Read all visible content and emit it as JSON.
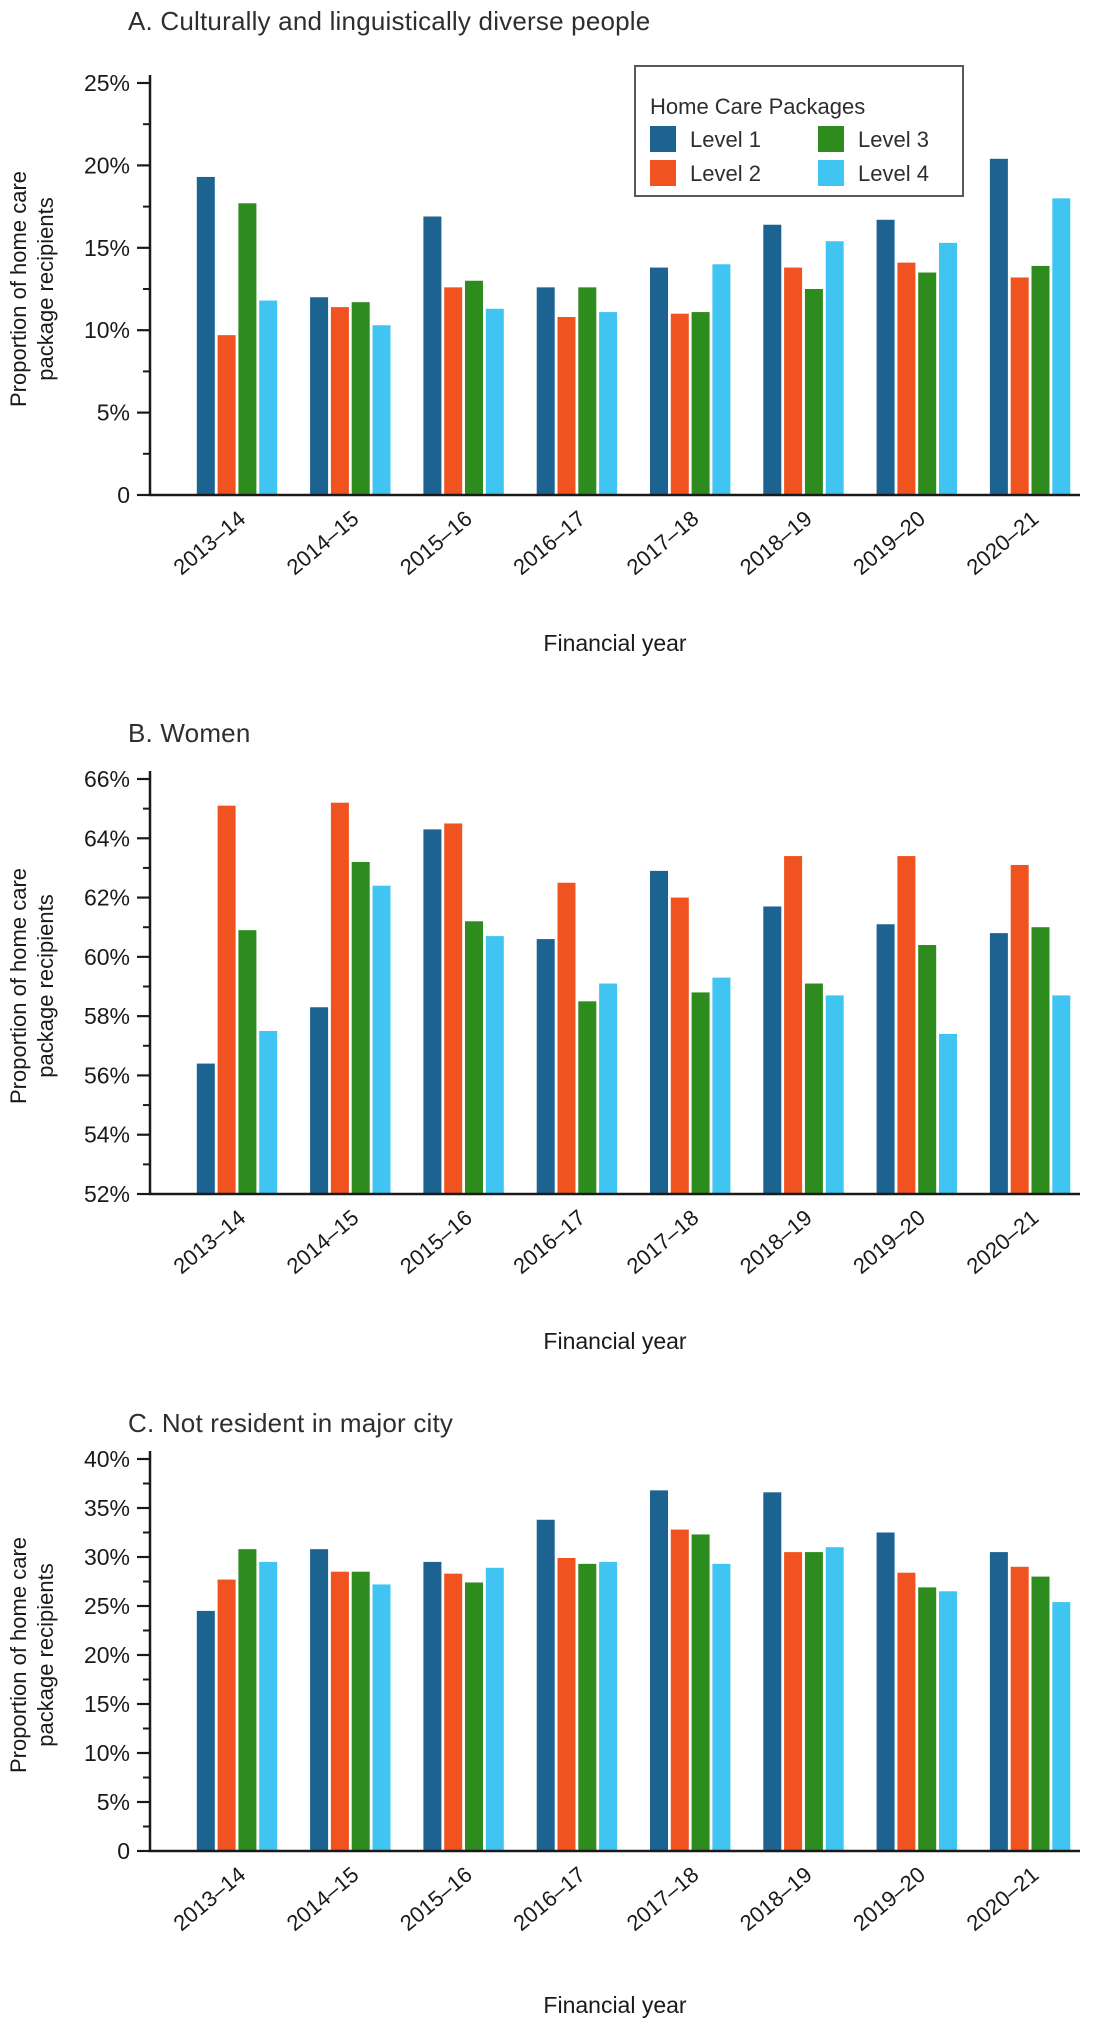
{
  "figure": {
    "legend": {
      "title": "Home Care Packages",
      "entries": [
        {
          "label": "Level 1",
          "color": "#1C6391"
        },
        {
          "label": "Level 2",
          "color": "#F0531F"
        },
        {
          "label": "Level 3",
          "color": "#2E8B1D"
        },
        {
          "label": "Level 4",
          "color": "#40C4F1"
        }
      ]
    },
    "colors": {
      "axis": "#1a1a1a",
      "text": "#1a1a1a",
      "title": "#2e2e2e",
      "legend_border": "#58595b"
    }
  },
  "chart_data": [
    {
      "type": "bar",
      "panel": "A",
      "title": "A. Culturally and linguistically diverse people",
      "xlabel": "Financial year",
      "ylabel": "Proportion of home care package recipients",
      "ylabel_lines": [
        "Proportion of home care",
        "package recipients"
      ],
      "categories": [
        "2013–14",
        "2014–15",
        "2015–16",
        "2016–17",
        "2017–18",
        "2018–19",
        "2019–20",
        "2020–21"
      ],
      "series": [
        {
          "name": "Level 1",
          "color": "#1C6391",
          "values": [
            19.3,
            12.0,
            16.9,
            12.6,
            13.8,
            16.4,
            16.7,
            20.4
          ]
        },
        {
          "name": "Level 2",
          "color": "#F0531F",
          "values": [
            9.7,
            11.4,
            12.6,
            10.8,
            11.0,
            13.8,
            14.1,
            13.2
          ]
        },
        {
          "name": "Level 3",
          "color": "#2E8B1D",
          "values": [
            17.7,
            11.7,
            13.0,
            12.6,
            11.1,
            12.5,
            13.5,
            13.9
          ]
        },
        {
          "name": "Level 4",
          "color": "#40C4F1",
          "values": [
            11.8,
            10.3,
            11.3,
            11.1,
            14.0,
            15.4,
            15.3,
            18.0
          ]
        }
      ],
      "ylim": [
        0,
        25
      ],
      "ytick_values": [
        0,
        5,
        10,
        15,
        20,
        25
      ],
      "ytick_labels": [
        "0",
        "5%",
        "10%",
        "15%",
        "20%",
        "25%"
      ],
      "minor_tick_step": 2.5,
      "grid": false,
      "legend_position": "top-right-inside"
    },
    {
      "type": "bar",
      "panel": "B",
      "title": "B. Women",
      "xlabel": "Financial year",
      "ylabel": "Proportion of home care package recipients",
      "ylabel_lines": [
        "Proportion of home care",
        "package recipients"
      ],
      "categories": [
        "2013–14",
        "2014–15",
        "2015–16",
        "2016–17",
        "2017–18",
        "2018–19",
        "2019–20",
        "2020–21"
      ],
      "series": [
        {
          "name": "Level 1",
          "color": "#1C6391",
          "values": [
            56.4,
            58.3,
            64.3,
            60.6,
            62.9,
            61.7,
            61.1,
            60.8
          ]
        },
        {
          "name": "Level 2",
          "color": "#F0531F",
          "values": [
            65.1,
            65.2,
            64.5,
            62.5,
            62.0,
            63.4,
            63.4,
            63.1
          ]
        },
        {
          "name": "Level 3",
          "color": "#2E8B1D",
          "values": [
            60.9,
            63.2,
            61.2,
            58.5,
            58.8,
            59.1,
            60.4,
            61.0
          ]
        },
        {
          "name": "Level 4",
          "color": "#40C4F1",
          "values": [
            57.5,
            62.4,
            60.7,
            59.1,
            59.3,
            58.7,
            57.4,
            58.7
          ]
        }
      ],
      "ylim": [
        52,
        66
      ],
      "ytick_values": [
        52,
        54,
        56,
        58,
        60,
        62,
        64,
        66
      ],
      "ytick_labels": [
        "52%",
        "54%",
        "56%",
        "58%",
        "60%",
        "62%",
        "64%",
        "66%"
      ],
      "minor_tick_step": 1,
      "grid": false,
      "legend_position": "none"
    },
    {
      "type": "bar",
      "panel": "C",
      "title": "C. Not resident in major city",
      "xlabel": "Financial year",
      "ylabel": "Proportion of home care package recipients",
      "ylabel_lines": [
        "Proportion of home care",
        "package recipients"
      ],
      "categories": [
        "2013–14",
        "2014–15",
        "2015–16",
        "2016–17",
        "2017–18",
        "2018–19",
        "2019–20",
        "2020–21"
      ],
      "series": [
        {
          "name": "Level 1",
          "color": "#1C6391",
          "values": [
            24.5,
            30.8,
            29.5,
            33.8,
            36.8,
            36.6,
            32.5,
            30.5
          ]
        },
        {
          "name": "Level 2",
          "color": "#F0531F",
          "values": [
            27.7,
            28.5,
            28.3,
            29.9,
            32.8,
            30.5,
            28.4,
            29.0
          ]
        },
        {
          "name": "Level 3",
          "color": "#2E8B1D",
          "values": [
            30.8,
            28.5,
            27.4,
            29.3,
            32.3,
            30.5,
            26.9,
            28.0
          ]
        },
        {
          "name": "Level 4",
          "color": "#40C4F1",
          "values": [
            29.5,
            27.2,
            28.9,
            29.5,
            29.3,
            31.0,
            26.5,
            25.4
          ]
        }
      ],
      "ylim": [
        0,
        40
      ],
      "ytick_values": [
        0,
        5,
        10,
        15,
        20,
        25,
        30,
        35,
        40
      ],
      "ytick_labels": [
        "0",
        "5%",
        "10%",
        "15%",
        "20%",
        "25%",
        "30%",
        "35%",
        "40%"
      ],
      "minor_tick_step": 2.5,
      "grid": false,
      "legend_position": "none"
    }
  ]
}
